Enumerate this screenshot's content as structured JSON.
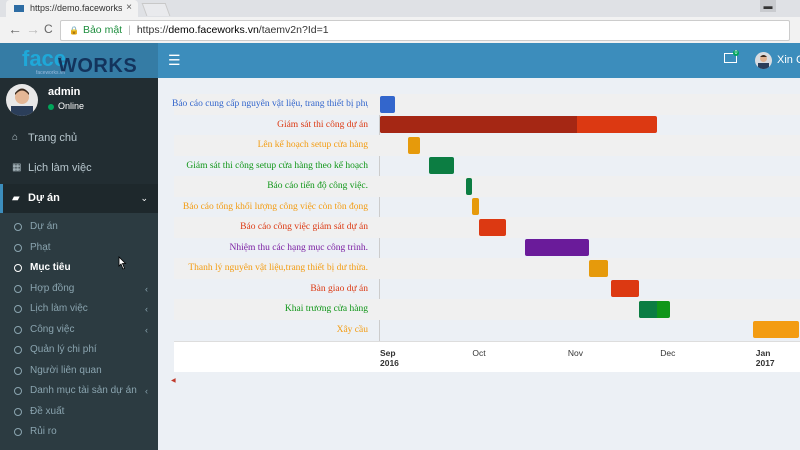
{
  "browser": {
    "tab_title": "https://demo.faceworks.v",
    "tab_close": "×",
    "minimize": "▬",
    "back": "←",
    "forward": "→",
    "reload": "C",
    "lock": "🔒",
    "secure_label": "Bảo mật",
    "url_scheme": "https://",
    "url_host": "demo.faceworks.vn",
    "url_path": "/taemv2n?Id=1"
  },
  "app": {
    "logo_face": "face",
    "logo_works": "WORKS",
    "logo_sub": "faceworks.vn",
    "menu_toggle": "☰",
    "mail_badge": "0",
    "top_user": "Xin Ch"
  },
  "sidebar": {
    "user_name": "admin",
    "status": "Online",
    "items": [
      {
        "icon": "⌂",
        "label": "Trang chủ"
      },
      {
        "icon": "▦",
        "label": "Lịch làm việc"
      },
      {
        "icon": "▰",
        "label": "Dự án",
        "caret": "⌄"
      }
    ],
    "subitems": [
      {
        "label": "Dự án",
        "caret": ""
      },
      {
        "label": "Phạt",
        "caret": ""
      },
      {
        "label": "Mục tiêu",
        "caret": ""
      },
      {
        "label": "Hợp đồng",
        "caret": "‹"
      },
      {
        "label": "Lịch làm việc",
        "caret": "‹"
      },
      {
        "label": "Công việc",
        "caret": "‹"
      },
      {
        "label": "Quản lý chi phí",
        "caret": ""
      },
      {
        "label": "Người liên quan",
        "caret": ""
      },
      {
        "label": "Danh mục tài sản dự án",
        "caret": "‹"
      },
      {
        "label": "Đề xuất",
        "caret": ""
      },
      {
        "label": "Rủi ro",
        "caret": ""
      }
    ]
  },
  "gantt": {
    "tasks": [
      {
        "name": "Báo cáo cung cấp nguyên vật liệu, trang thiết bị phục vụ dự án.",
        "color": "#3366cc",
        "start": "2016-09-01",
        "end": "2016-09-06",
        "done": 1.0,
        "done_color": "#3366cc"
      },
      {
        "name": "Giám sát thi công dự án",
        "color": "#dc3912",
        "start": "2016-09-01",
        "end": "2016-11-30",
        "done": 0.71,
        "done_color": "#a52714"
      },
      {
        "name": "Lên kế hoạch setup cửa hàng",
        "color": "#f39c12",
        "start": "2016-09-10",
        "end": "2016-09-14",
        "done": 1.0,
        "done_color": "#e69a0b"
      },
      {
        "name": "Giám sát thi công setup cửa hàng theo kế hoạch",
        "color": "#109618",
        "start": "2016-09-17",
        "end": "2016-09-25",
        "done": 1.0,
        "done_color": "#0c7d42"
      },
      {
        "name": "Báo cáo tiến độ công việc.",
        "color": "#109618",
        "start": "2016-09-29",
        "end": "2016-10-01",
        "done": 1.0,
        "done_color": "#0c7d42"
      },
      {
        "name": "Báo cáo tổng khối lượng công việc còn tồn đọng",
        "color": "#f39c12",
        "start": "2016-10-01",
        "end": "2016-10-03",
        "done": 1.0,
        "done_color": "#e69a0b"
      },
      {
        "name": "Báo cáo công việc giám sát dự án",
        "color": "#dc3912",
        "start": "2016-10-03",
        "end": "2016-10-12",
        "done": 0.0,
        "done_color": "#dc3912"
      },
      {
        "name": "Nhiệm thu các hạng mục công trình.",
        "color": "#7b1fa2",
        "start": "2016-10-18",
        "end": "2016-11-08",
        "done": 1.0,
        "done_color": "#6a1b9a"
      },
      {
        "name": "Thanh lý nguyên vật liệu,trang thiết bị dư thừa.",
        "color": "#f39c12",
        "start": "2016-11-08",
        "end": "2016-11-14",
        "done": 1.0,
        "done_color": "#e69a0b"
      },
      {
        "name": "Bàn giao dự án",
        "color": "#dc3912",
        "start": "2016-11-15",
        "end": "2016-11-24",
        "done": 0.0,
        "done_color": "#dc3912"
      },
      {
        "name": "Khai trương cửa hàng",
        "color": "#109618",
        "start": "2016-11-24",
        "end": "2016-12-04",
        "done": 0.6,
        "done_color": "#0c7d42"
      },
      {
        "name": "Xây cầu",
        "color": "#f39c12",
        "start": "2016-12-31",
        "end": "2017-01-15",
        "done": 0.0,
        "done_color": "#e67e22"
      }
    ],
    "ticks": [
      {
        "date": "2016-09-01",
        "label": "Sep",
        "year": "2016",
        "major": true
      },
      {
        "date": "2016-10-01",
        "label": "Oct",
        "year": "",
        "major": false
      },
      {
        "date": "2016-11-01",
        "label": "Nov",
        "year": "",
        "major": false
      },
      {
        "date": "2016-12-01",
        "label": "Dec",
        "year": "",
        "major": false
      },
      {
        "date": "2017-01-01",
        "label": "Jan",
        "year": "2017",
        "major": true
      }
    ],
    "scroll_left": "◀"
  }
}
